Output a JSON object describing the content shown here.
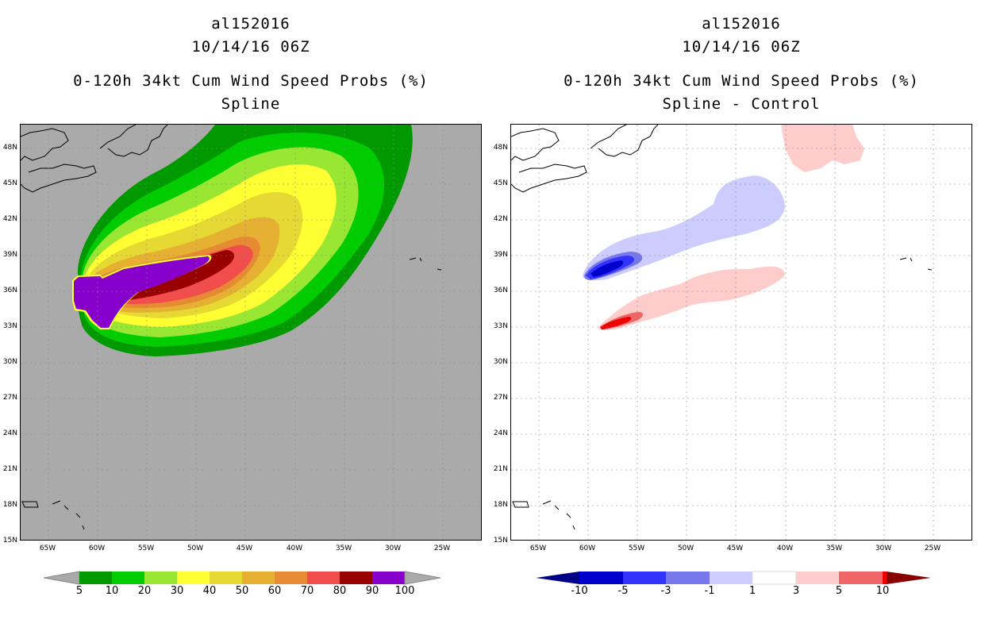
{
  "left_panel": {
    "title_lines": [
      "al152016",
      "10/14/16 06Z",
      "0-120h 34kt Cum Wind Speed Probs (%)",
      "Spline"
    ],
    "background_color": "#aaaaaa",
    "colorbar": {
      "labels": [
        "5",
        "10",
        "20",
        "30",
        "40",
        "50",
        "60",
        "70",
        "80",
        "90",
        "100"
      ],
      "colors": [
        "#009900",
        "#00cc00",
        "#99e633",
        "#ffff33",
        "#e6d933",
        "#e6b033",
        "#e68a33",
        "#f24d4d",
        "#990000",
        "#8800cc"
      ]
    }
  },
  "right_panel": {
    "title_lines": [
      "al152016",
      "10/14/16 06Z",
      "0-120h 34kt Cum Wind Speed Probs (%)",
      "Spline - Control"
    ],
    "background_color": "#ffffff",
    "colorbar": {
      "labels": [
        "-10",
        "-5",
        "-3",
        "-1",
        "1",
        "3",
        "5",
        "10"
      ],
      "colors": [
        "#0000cc",
        "#3333ff",
        "#7777ee",
        "#ccccff",
        "#ffffff",
        "#ffcccc",
        "#f06666",
        "#ee0000"
      ]
    }
  },
  "axes": {
    "lat_labels": [
      "48N",
      "45N",
      "42N",
      "39N",
      "36N",
      "33N",
      "30N",
      "27N",
      "24N",
      "21N",
      "18N",
      "15N"
    ],
    "lon_labels": [
      "65W",
      "60W",
      "55W",
      "50W",
      "45W",
      "40W",
      "35W",
      "30W",
      "25W"
    ]
  }
}
